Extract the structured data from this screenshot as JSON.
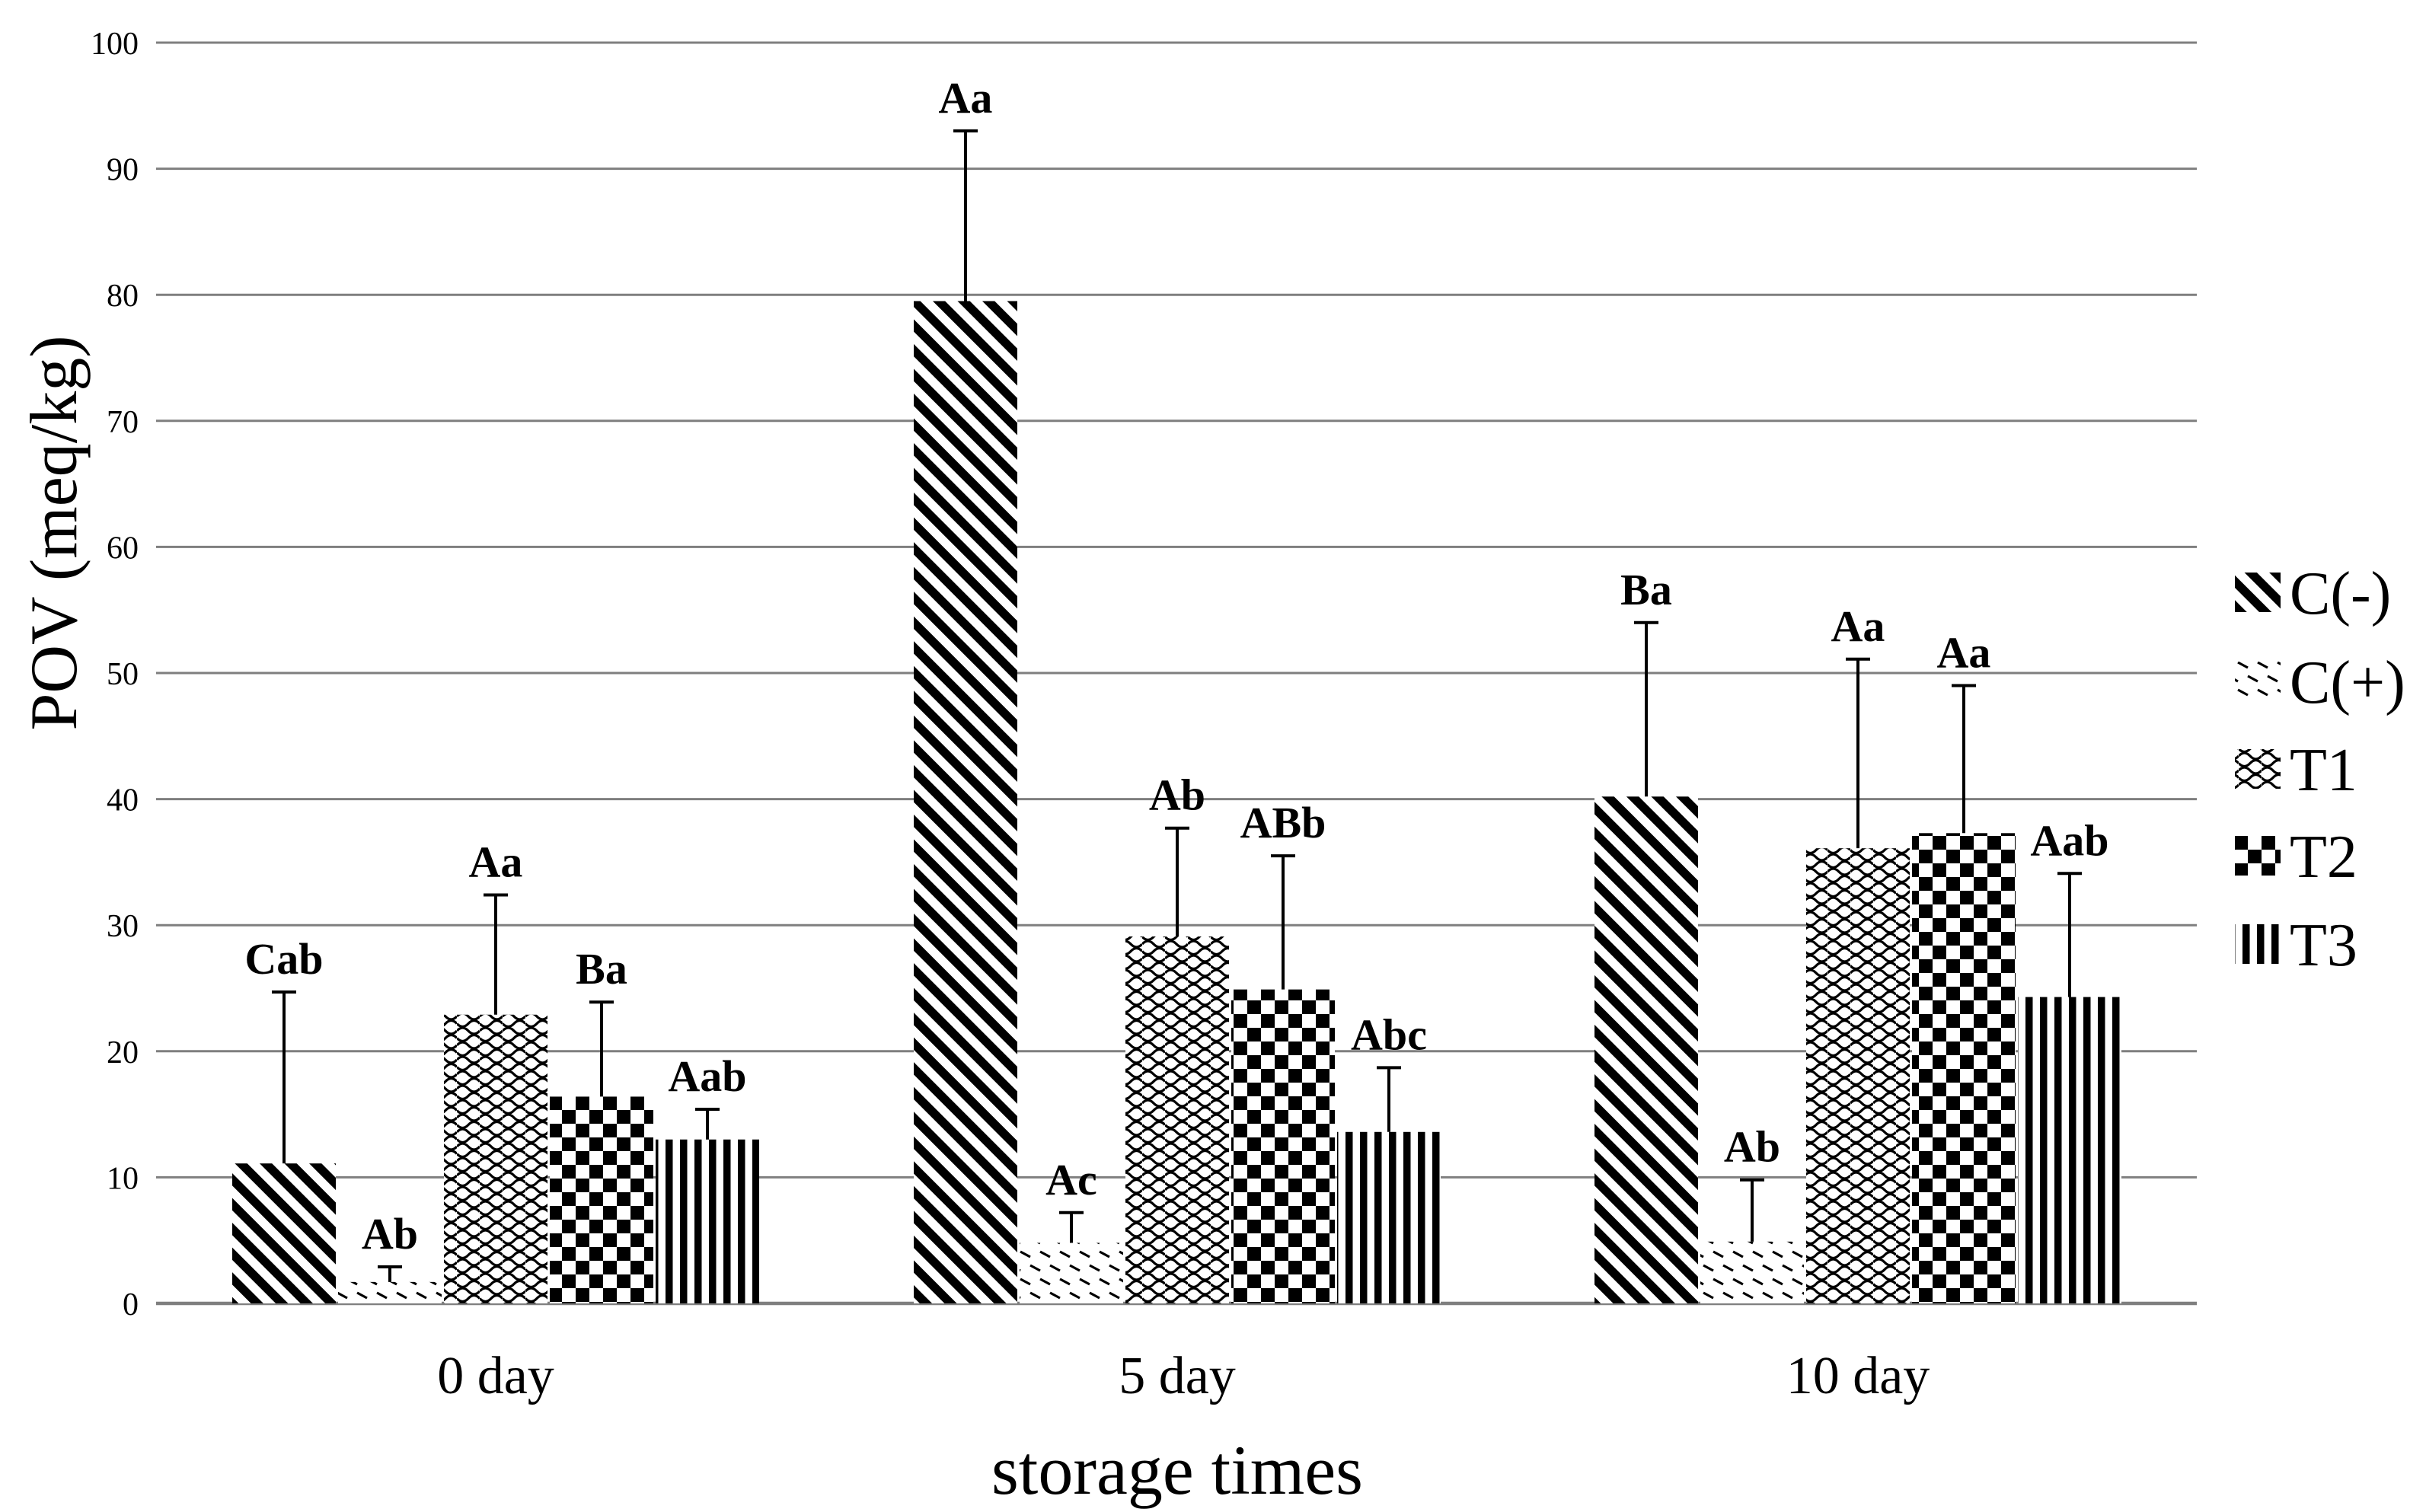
{
  "chart_data": {
    "type": "bar",
    "title": "",
    "xlabel": "storage times",
    "ylabel": "POV (meq/kg)",
    "ylim": [
      0,
      100
    ],
    "ytick_step": 10,
    "yticks": [
      0,
      10,
      20,
      30,
      40,
      50,
      60,
      70,
      80,
      90,
      100
    ],
    "grid": "horizontal-gray-lines",
    "legend_position": "right-outside",
    "categories": [
      "0 day",
      "5 day",
      "10 day"
    ],
    "series": [
      {
        "name": "C(-)",
        "pattern": "diagonal-stripes",
        "values": [
          11.1,
          79.5,
          40.2
        ],
        "error_up": [
          13.6,
          13.5,
          13.8
        ],
        "sig_labels": [
          "Cab",
          "Aa",
          "Ba"
        ]
      },
      {
        "name": "C(+)",
        "pattern": "fine-diagonal-dashes",
        "values": [
          1.7,
          4.8,
          4.9
        ],
        "error_up": [
          1.2,
          2.4,
          4.9
        ],
        "sig_labels": [
          "Ab",
          "Ac",
          "Ab"
        ]
      },
      {
        "name": "T1",
        "pattern": "wavy-lines",
        "values": [
          22.9,
          29.1,
          36.1
        ],
        "error_up": [
          9.5,
          8.6,
          15.0
        ],
        "sig_labels": [
          "Aa",
          "Ab",
          "Aa"
        ]
      },
      {
        "name": "T2",
        "pattern": "checkerboard",
        "values": [
          16.4,
          24.9,
          37.3
        ],
        "error_up": [
          7.5,
          10.6,
          11.7
        ],
        "sig_labels": [
          "Ba",
          "ABb",
          "Aa"
        ]
      },
      {
        "name": "T3",
        "pattern": "vertical-stripes",
        "values": [
          13.0,
          13.6,
          24.3
        ],
        "error_up": [
          2.4,
          5.1,
          9.8
        ],
        "sig_labels": [
          "Aab",
          "Abc",
          "Aab"
        ]
      }
    ]
  },
  "colors": {
    "ink": "#000000",
    "gridline": "#7f7f7f",
    "background": "#ffffff"
  }
}
